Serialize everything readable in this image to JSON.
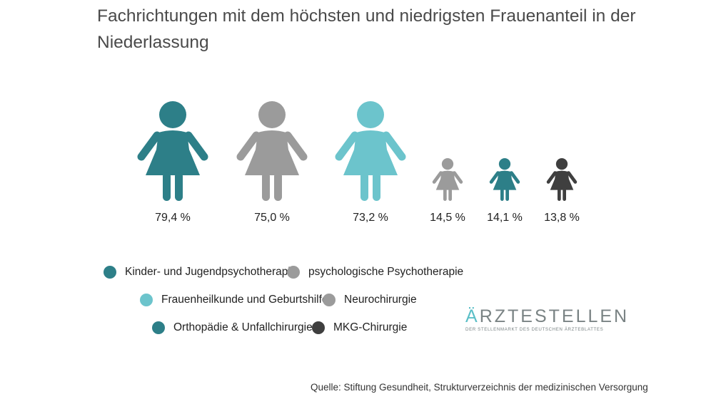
{
  "title": "Fachrichtungen mit dem höchsten und niedrigsten Frauenanteil in der Niederlassung",
  "chart_data": {
    "type": "pictogram",
    "title": "Fachrichtungen mit dem höchsten und niedrigsten Frauenanteil in der Niederlassung",
    "unit": "%",
    "categories": [
      "Kinder- und Jugendpsychotherapie",
      "psychologische Psychotherapie",
      "Frauenheilkunde und Geburtshilfe",
      "Neurochirurgie",
      "Orthopädie & Unfallchirurgie",
      "MKG-Chirurgie"
    ],
    "values": [
      79.4,
      75.0,
      73.2,
      14.5,
      14.1,
      13.8
    ],
    "value_labels": [
      "79,4 %",
      "75,0 %",
      "73,2 %",
      "14,5 %",
      "14,1 %",
      "13,8 %"
    ],
    "colors": [
      "#2d7f88",
      "#9b9b9b",
      "#6cc4cc",
      "#9b9b9b",
      "#2d7f88",
      "#3f3f3f"
    ]
  },
  "legend": [
    {
      "label": "Kinder- und Jugendpsychotherapie",
      "color": "#2d7f88"
    },
    {
      "label": "psychologische Psychotherapie",
      "color": "#9b9b9b"
    },
    {
      "label": "Frauenheilkunde und Geburtshilfe",
      "color": "#6cc4cc"
    },
    {
      "label": "Neurochirurgie",
      "color": "#9b9b9b"
    },
    {
      "label": "Orthopädie & Unfallchirurgie",
      "color": "#2d7f88"
    },
    {
      "label": "MKG-Chirurgie",
      "color": "#3f3f3f"
    }
  ],
  "brand": {
    "name_accent": "Ä",
    "name_rest": "RZTESTELLEN",
    "tagline": "DER STELLENMARKT DES DEUTSCHEN ÄRZTEBLATTES"
  },
  "source": "Quelle: Stiftung Gesundheit, Strukturverzeichnis der medizinischen Versorgung"
}
